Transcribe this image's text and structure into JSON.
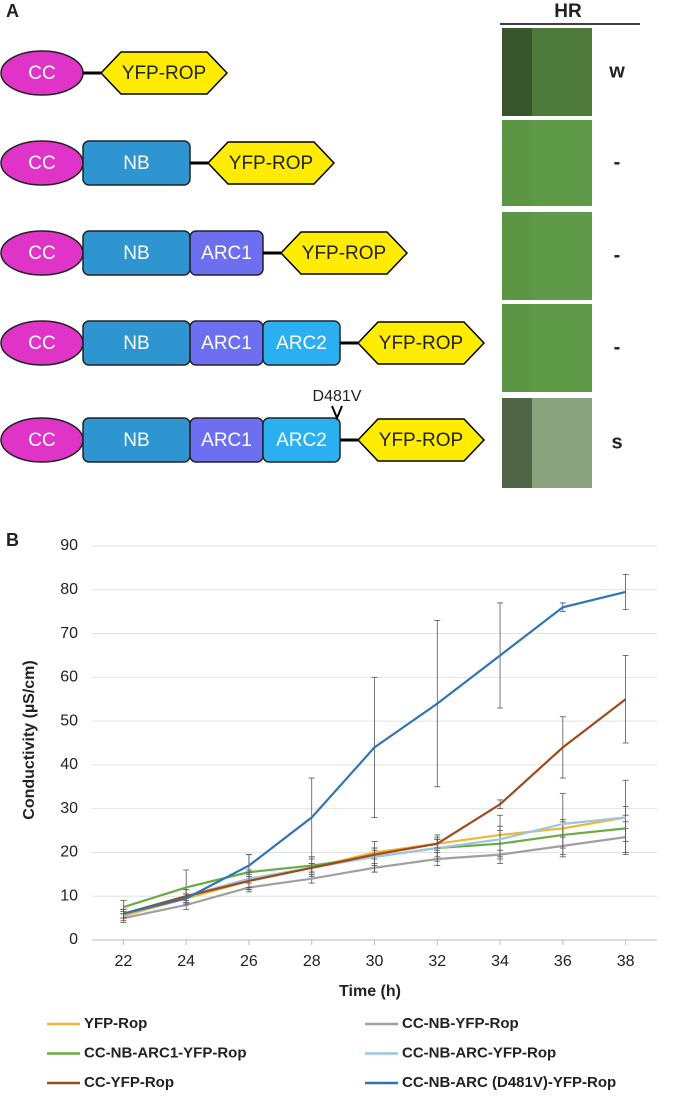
{
  "panel_a": {
    "label": "A",
    "header": "HR",
    "mutation": "D481V",
    "constructs": [
      {
        "domains": [
          "CC",
          "YFP-ROP"
        ],
        "hr": "w"
      },
      {
        "domains": [
          "CC",
          "NB",
          "YFP-ROP"
        ],
        "hr": "-"
      },
      {
        "domains": [
          "CC",
          "NB",
          "ARC1",
          "YFP-ROP"
        ],
        "hr": "-"
      },
      {
        "domains": [
          "CC",
          "NB",
          "ARC1",
          "ARC2",
          "YFP-ROP"
        ],
        "hr": "-"
      },
      {
        "domains": [
          "CC",
          "NB",
          "ARC1",
          "ARC2",
          "YFP-ROP"
        ],
        "hr": "s"
      }
    ]
  },
  "chart_data": {
    "type": "line",
    "label": "B",
    "x_label": "Time (h)",
    "y_label": "Conductivity (µS/cm)",
    "x": [
      22,
      24,
      26,
      28,
      30,
      32,
      34,
      36,
      38
    ],
    "xlim": [
      21,
      39
    ],
    "xticks": [
      22,
      24,
      26,
      28,
      30,
      32,
      34,
      36,
      38
    ],
    "ylim": [
      0,
      90
    ],
    "yticks": [
      0,
      10,
      20,
      30,
      40,
      50,
      60,
      70,
      80,
      90
    ],
    "grid": true,
    "series": [
      {
        "name": "YFP-Rop",
        "color": "#f2b632",
        "values": [
          5.5,
          9.5,
          13.5,
          16.5,
          20,
          22,
          24,
          25.5,
          28
        ],
        "errors": [
          1,
          1,
          1.5,
          1,
          1,
          1.5,
          2,
          2,
          2.5
        ]
      },
      {
        "name": "CC-NB-YFP-Rop",
        "color": "#a0a0a0",
        "values": [
          5,
          8,
          12,
          14,
          16.5,
          18.5,
          19.5,
          21.5,
          23.5
        ],
        "errors": [
          1,
          1,
          1,
          1,
          1,
          1.5,
          1,
          2.5,
          3.5
        ]
      },
      {
        "name": "CC-NB-ARC1-YFP-Rop",
        "color": "#6aab46",
        "values": [
          7.5,
          12,
          15.5,
          17,
          19,
          21,
          22,
          24,
          25.5
        ],
        "errors": [
          1.5,
          4,
          4,
          2,
          2,
          2,
          3,
          3,
          3
        ]
      },
      {
        "name": "CC-NB-ARC-YFP-Rop",
        "color": "#9cc5e4",
        "values": [
          6,
          10,
          14,
          16.5,
          19,
          21,
          23,
          26.5,
          28
        ],
        "errors": [
          1,
          1.5,
          2,
          2,
          3.5,
          3,
          5.5,
          7,
          8.5
        ]
      },
      {
        "name": "CC-YFP-Rop",
        "color": "#9e4a1c",
        "values": [
          6,
          10,
          13.5,
          16.5,
          19.5,
          22,
          31,
          44,
          55
        ],
        "errors": [
          1,
          1.5,
          2,
          1,
          1,
          1,
          1,
          7,
          10
        ]
      },
      {
        "name": "CC-NB-ARC (D481V)-YFP-Rop",
        "color": "#2e75b6",
        "values": [
          6,
          9.5,
          17,
          28,
          44,
          54,
          65,
          76,
          79.5
        ],
        "errors": [
          1,
          1,
          2.5,
          9,
          16,
          19,
          12,
          1,
          4
        ]
      }
    ]
  }
}
